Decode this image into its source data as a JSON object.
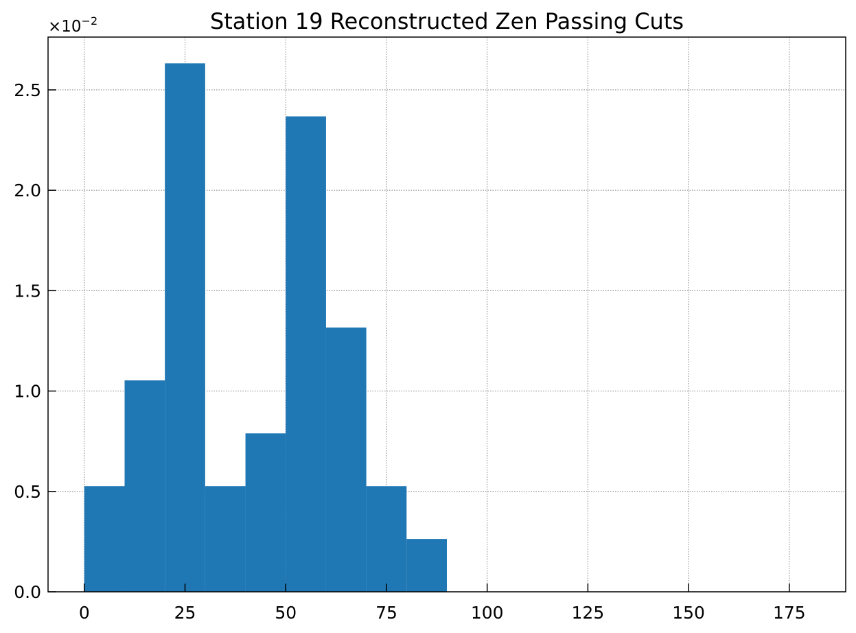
{
  "chart_data": {
    "type": "bar",
    "title": "Station 19 Reconstructed Zen Passing Cuts",
    "xlabel": "",
    "ylabel": "",
    "y_offset_text": "×10",
    "y_offset_exponent": "−2",
    "bin_edges": [
      0,
      10,
      20,
      30,
      40,
      50,
      60,
      70,
      80,
      90
    ],
    "values": [
      0.00526,
      0.01053,
      0.02632,
      0.00526,
      0.00789,
      0.02368,
      0.01316,
      0.00526,
      0.00263
    ],
    "xlim": [
      -9,
      189
    ],
    "ylim": [
      0,
      0.02763
    ],
    "x_ticks": [
      0,
      25,
      50,
      75,
      100,
      125,
      150,
      175
    ],
    "x_tick_labels": [
      "0",
      "25",
      "50",
      "75",
      "100",
      "125",
      "150",
      "175"
    ],
    "y_ticks": [
      0,
      0.005,
      0.01,
      0.015,
      0.02,
      0.025
    ],
    "y_tick_labels": [
      "0.0",
      "0.5",
      "1.0",
      "1.5",
      "2.0",
      "2.5"
    ],
    "grid": true,
    "bar_color": "#1f77b4",
    "legend": "none"
  }
}
